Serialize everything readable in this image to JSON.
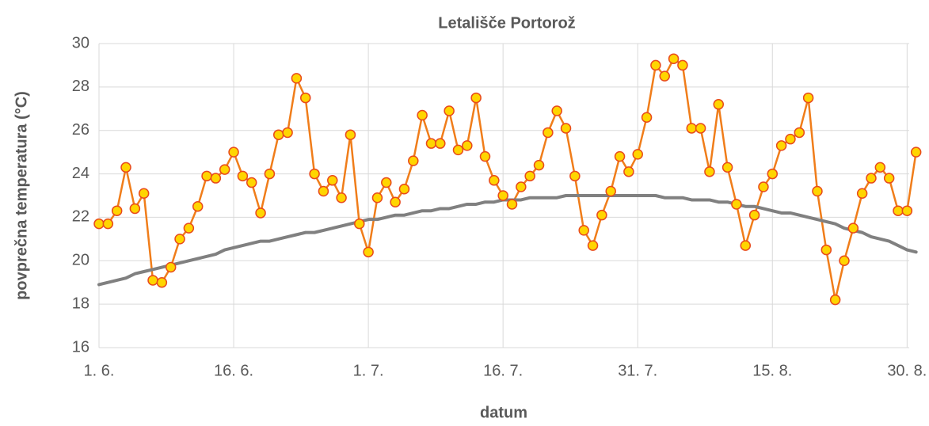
{
  "chart_data": {
    "type": "line",
    "title": "Letališče Portorož",
    "x_label": "datum",
    "y_label": "povprečna temperatura (°C)",
    "categories": [
      "1. 6.",
      null,
      null,
      null,
      null,
      null,
      null,
      null,
      null,
      null,
      null,
      null,
      null,
      null,
      null,
      "16. 6.",
      null,
      null,
      null,
      null,
      null,
      null,
      null,
      null,
      null,
      null,
      null,
      null,
      null,
      null,
      "1. 7.",
      null,
      null,
      null,
      null,
      null,
      null,
      null,
      null,
      null,
      null,
      null,
      null,
      null,
      null,
      "16. 7.",
      null,
      null,
      null,
      null,
      null,
      null,
      null,
      null,
      null,
      null,
      null,
      null,
      null,
      null,
      "31. 7.",
      null,
      null,
      null,
      null,
      null,
      null,
      null,
      null,
      null,
      null,
      null,
      null,
      null,
      null,
      "15. 8.",
      null,
      null,
      null,
      null,
      null,
      null,
      null,
      null,
      null,
      null,
      null,
      null,
      null,
      null,
      "30. 8.",
      null
    ],
    "series": [
      {
        "color": "#f07d1a",
        "marker_fill": "#ffd500",
        "marker_edge": "#e84a1c",
        "markers": true,
        "line_width": 2.5,
        "values": [
          21.7,
          21.7,
          22.3,
          24.3,
          22.4,
          23.1,
          19.1,
          19.0,
          19.7,
          21.0,
          21.5,
          22.5,
          23.9,
          23.8,
          24.2,
          25.0,
          23.9,
          23.6,
          22.2,
          24.0,
          25.8,
          25.9,
          28.4,
          27.5,
          24.0,
          23.2,
          23.7,
          22.9,
          25.8,
          21.7,
          20.4,
          22.9,
          23.6,
          22.7,
          23.3,
          24.6,
          26.7,
          25.4,
          25.4,
          26.9,
          25.1,
          25.3,
          27.5,
          24.8,
          23.7,
          23.0,
          22.6,
          23.4,
          23.9,
          24.4,
          25.9,
          26.9,
          26.1,
          23.9,
          21.4,
          20.7,
          22.1,
          23.2,
          24.8,
          24.1,
          24.9,
          26.6,
          29.0,
          28.5,
          29.3,
          29.0,
          26.1,
          26.1,
          24.1,
          27.2,
          24.3,
          22.6,
          20.7,
          22.1,
          23.4,
          24.0,
          25.3,
          25.6,
          25.9,
          27.5,
          23.2,
          20.5,
          18.2,
          20.0,
          21.5,
          23.1,
          23.8,
          24.3,
          23.8,
          22.3,
          22.3,
          25.0
        ]
      },
      {
        "color": "#808080",
        "markers": false,
        "line_width": 4,
        "values": [
          18.9,
          19.0,
          19.1,
          19.2,
          19.4,
          19.5,
          19.6,
          19.7,
          19.8,
          19.9,
          20.0,
          20.1,
          20.2,
          20.3,
          20.5,
          20.6,
          20.7,
          20.8,
          20.9,
          20.9,
          21.0,
          21.1,
          21.2,
          21.3,
          21.3,
          21.4,
          21.5,
          21.6,
          21.7,
          21.8,
          21.9,
          21.9,
          22.0,
          22.1,
          22.1,
          22.2,
          22.3,
          22.3,
          22.4,
          22.4,
          22.5,
          22.6,
          22.6,
          22.7,
          22.7,
          22.8,
          22.8,
          22.8,
          22.9,
          22.9,
          22.9,
          22.9,
          23.0,
          23.0,
          23.0,
          23.0,
          23.0,
          23.0,
          23.0,
          23.0,
          23.0,
          23.0,
          23.0,
          22.9,
          22.9,
          22.9,
          22.8,
          22.8,
          22.8,
          22.7,
          22.7,
          22.6,
          22.5,
          22.5,
          22.4,
          22.3,
          22.2,
          22.2,
          22.1,
          22.0,
          21.9,
          21.8,
          21.7,
          21.5,
          21.4,
          21.3,
          21.1,
          21.0,
          20.9,
          20.7,
          20.5,
          20.4
        ]
      }
    ],
    "ylim": [
      16,
      30
    ],
    "yticks": [
      16,
      18,
      20,
      22,
      24,
      26,
      28,
      30
    ],
    "grid": true
  }
}
